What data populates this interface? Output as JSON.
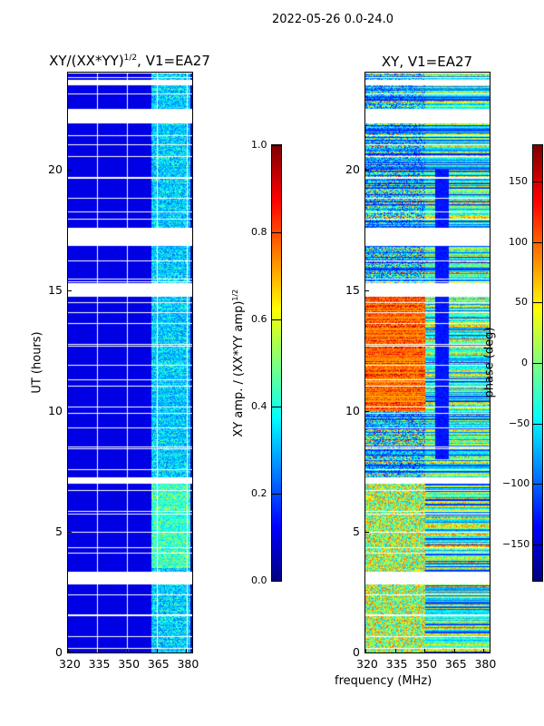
{
  "suptitle": "2022-05-26 0.0-24.0",
  "xlabel": "frequency (MHz)",
  "chart_data": [
    {
      "type": "heatmap",
      "title": "XY/(XX*YY)",
      "title_sup": "1/2",
      "title_suffix": ", V1=EA27",
      "ylabel": "UT (hours)",
      "xlabel": "frequency (MHz)",
      "xlim": [
        320,
        383
      ],
      "ylim": [
        0,
        24
      ],
      "xticks": [
        320,
        335,
        350,
        365,
        380
      ],
      "yticks": [
        0,
        5,
        10,
        15,
        20
      ],
      "colorbar": {
        "label": "XY amp. / (XX*YY amp)",
        "label_sup": "1/2",
        "range": [
          0,
          1
        ],
        "ticks": [
          "0.0",
          "0.2",
          "0.4",
          "0.6",
          "0.8",
          "1.0"
        ],
        "cmap": "jet"
      }
    },
    {
      "type": "heatmap",
      "title": "XY, V1=EA27",
      "xlim": [
        320,
        383
      ],
      "ylim": [
        0,
        24
      ],
      "xticks": [
        320,
        335,
        350,
        365,
        380
      ],
      "yticks": [
        0,
        5,
        10,
        15,
        20
      ],
      "colorbar": {
        "label": "phase (deg)",
        "range": [
          -180,
          180
        ],
        "ticks": [
          "150",
          "100",
          "50",
          "0",
          "−50",
          "−100",
          "−150"
        ],
        "tickvals": [
          150,
          100,
          50,
          0,
          -50,
          -100,
          -150
        ],
        "cmap": "jet"
      }
    }
  ],
  "flagged_hours": [
    [
      2.85,
      3.35
    ],
    [
      7.0,
      7.25
    ],
    [
      14.75,
      15.3
    ],
    [
      16.9,
      17.6
    ],
    [
      21.9,
      22.5
    ],
    [
      23.5,
      23.7
    ]
  ]
}
